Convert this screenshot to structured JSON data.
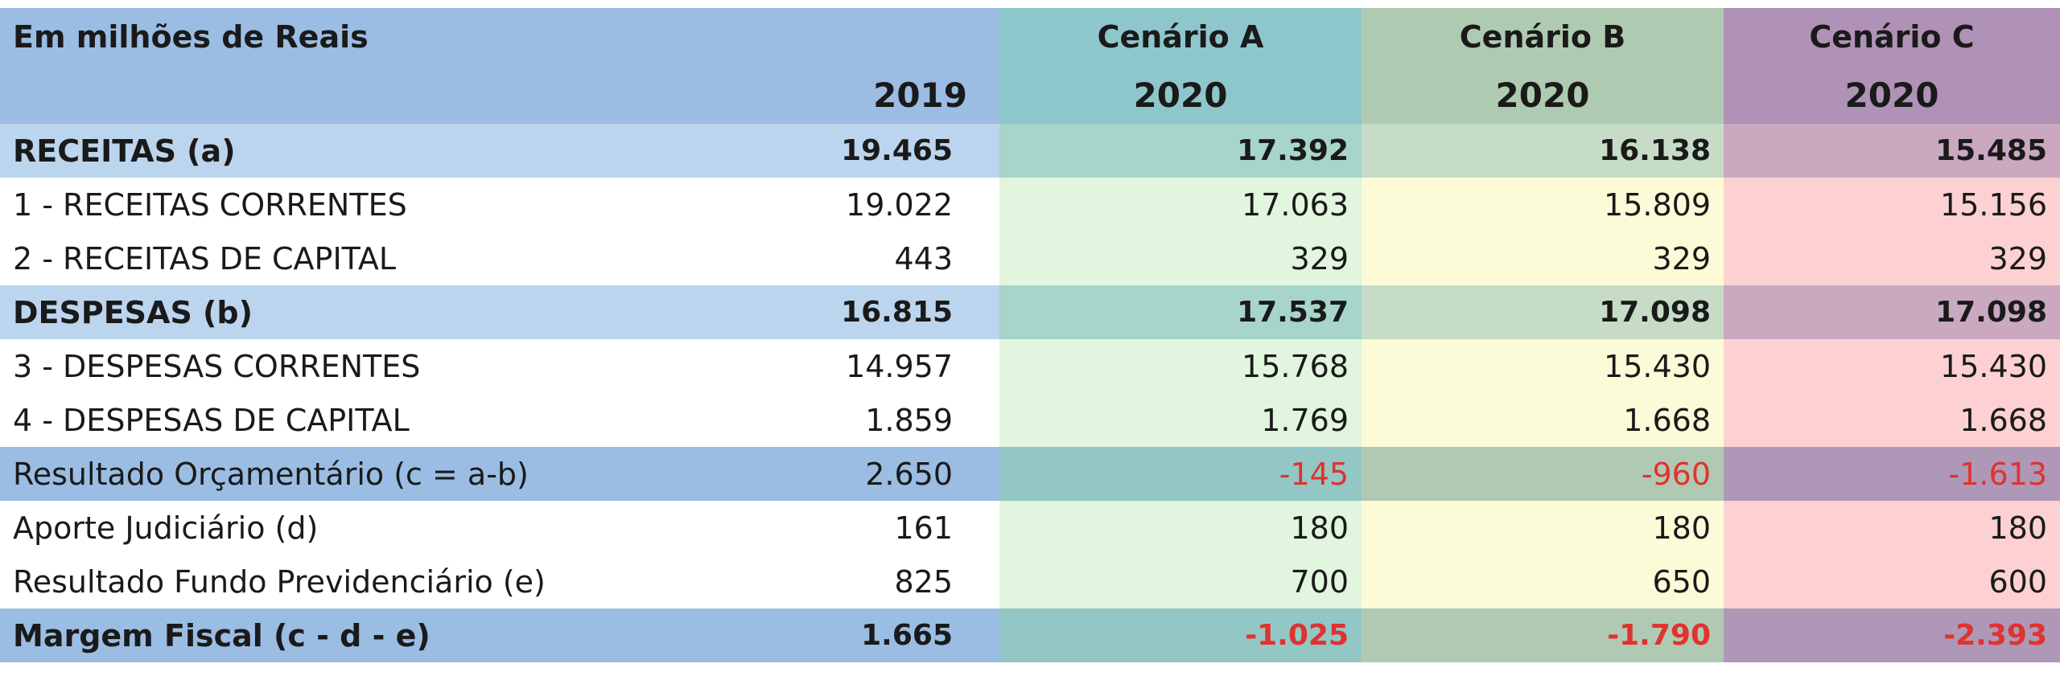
{
  "table": {
    "header": {
      "unit_label": "Em milhões de Reais",
      "year_2019": "2019",
      "scenarios": [
        {
          "name": "Cenário A",
          "year": "2020"
        },
        {
          "name": "Cenário B",
          "year": "2020"
        },
        {
          "name": "Cenário C",
          "year": "2020"
        }
      ]
    },
    "rows": [
      {
        "label": "RECEITAS (a)",
        "v2019": "19.465",
        "a": "17.392",
        "b": "16.138",
        "c": "15.485"
      },
      {
        "label": "1 - RECEITAS CORRENTES",
        "v2019": "19.022",
        "a": "17.063",
        "b": "15.809",
        "c": "15.156"
      },
      {
        "label": "2 - RECEITAS DE CAPITAL",
        "v2019": "443",
        "a": "329",
        "b": "329",
        "c": "329"
      },
      {
        "label": "DESPESAS  (b)",
        "v2019": "16.815",
        "a": "17.537",
        "b": "17.098",
        "c": "17.098"
      },
      {
        "label": "3 - DESPESAS CORRENTES",
        "v2019": "14.957",
        "a": "15.768",
        "b": "15.430",
        "c": "15.430"
      },
      {
        "label": "4 - DESPESAS DE CAPITAL",
        "v2019": "1.859",
        "a": "1.769",
        "b": "1.668",
        "c": "1.668"
      },
      {
        "label": "Resultado Orçamentário (c = a-b)",
        "v2019": "2.650",
        "a": "-145",
        "b": "-960",
        "c": "-1.613"
      },
      {
        "label": "Aporte Judiciário (d)",
        "v2019": "161",
        "a": "180",
        "b": "180",
        "c": "180"
      },
      {
        "label": "Resultado Fundo Previdenciário (e)",
        "v2019": "825",
        "a": "700",
        "b": "650",
        "c": "600"
      },
      {
        "label": "Margem Fiscal (c - d - e)",
        "v2019": "1.665",
        "a": "-1.025",
        "b": "-1.790",
        "c": "-2.393"
      }
    ]
  },
  "colors": {
    "header_blue": "#9bbde3",
    "scenario_a": "#8dc6cb",
    "scenario_b": "#aecbb1",
    "scenario_c": "#af92b5",
    "negative_text": "#e0322e"
  }
}
